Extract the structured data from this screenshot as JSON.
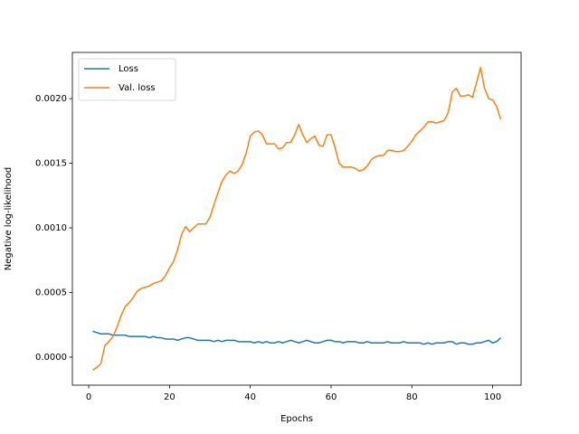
{
  "chart_data": {
    "type": "line",
    "xlabel": "Epochs",
    "ylabel": "Negative log-likelihood",
    "x": [
      1,
      2,
      3,
      4,
      5,
      6,
      7,
      8,
      9,
      10,
      11,
      12,
      13,
      14,
      15,
      16,
      17,
      18,
      19,
      20,
      21,
      22,
      23,
      24,
      25,
      26,
      27,
      28,
      29,
      30,
      31,
      32,
      33,
      34,
      35,
      36,
      37,
      38,
      39,
      40,
      41,
      42,
      43,
      44,
      45,
      46,
      47,
      48,
      49,
      50,
      51,
      52,
      53,
      54,
      55,
      56,
      57,
      58,
      59,
      60,
      61,
      62,
      63,
      64,
      65,
      66,
      67,
      68,
      69,
      70,
      71,
      72,
      73,
      74,
      75,
      76,
      77,
      78,
      79,
      80,
      81,
      82,
      83,
      84,
      85,
      86,
      87,
      88,
      89,
      90,
      91,
      92,
      93,
      94,
      95,
      96,
      97,
      98,
      99,
      100,
      101,
      102
    ],
    "series": [
      {
        "name": "Loss",
        "color": "#1f77b4",
        "values": [
          0.0002,
          0.00019,
          0.00018,
          0.00018,
          0.00018,
          0.00017,
          0.00017,
          0.00017,
          0.00017,
          0.00016,
          0.00016,
          0.00016,
          0.00016,
          0.00016,
          0.00015,
          0.00016,
          0.00015,
          0.00015,
          0.00014,
          0.00014,
          0.00014,
          0.00013,
          0.00014,
          0.00015,
          0.00015,
          0.00014,
          0.00013,
          0.00013,
          0.00013,
          0.00013,
          0.00012,
          0.00013,
          0.00012,
          0.00013,
          0.00013,
          0.00013,
          0.00012,
          0.00012,
          0.00012,
          0.00012,
          0.00011,
          0.00012,
          0.00011,
          0.00012,
          0.00011,
          0.00011,
          0.00012,
          0.00011,
          0.00012,
          0.00013,
          0.00012,
          0.00011,
          0.00012,
          0.00013,
          0.00012,
          0.00011,
          0.00011,
          0.00012,
          0.00013,
          0.00013,
          0.00012,
          0.00012,
          0.00011,
          0.00012,
          0.00012,
          0.00012,
          0.00011,
          0.00011,
          0.00012,
          0.00011,
          0.00011,
          0.00011,
          0.00011,
          0.00012,
          0.00011,
          0.00011,
          0.00011,
          0.00012,
          0.00011,
          0.00011,
          0.00011,
          0.00011,
          0.0001,
          0.00011,
          0.0001,
          0.00011,
          0.00011,
          0.00011,
          0.00012,
          0.00012,
          0.0001,
          0.00011,
          0.00011,
          0.0001,
          0.0001,
          0.00011,
          0.00011,
          0.00012,
          0.00013,
          0.00011,
          0.00012,
          0.00015
        ]
      },
      {
        "name": "Val. loss",
        "color": "#ff7f0e",
        "values": [
          -0.0001,
          -8e-05,
          -5e-05,
          9e-05,
          0.00012,
          0.00016,
          0.00023,
          0.00032,
          0.00039,
          0.00042,
          0.00046,
          0.00051,
          0.00053,
          0.00054,
          0.00055,
          0.00057,
          0.00058,
          0.00059,
          0.00063,
          0.00069,
          0.00074,
          0.00083,
          0.00095,
          0.00101,
          0.00097,
          0.001,
          0.00103,
          0.00103,
          0.00103,
          0.00108,
          0.00118,
          0.00127,
          0.00136,
          0.00141,
          0.00144,
          0.00142,
          0.00144,
          0.00149,
          0.00158,
          0.00171,
          0.00174,
          0.00175,
          0.00172,
          0.00165,
          0.00165,
          0.00165,
          0.00161,
          0.00162,
          0.00166,
          0.00166,
          0.00172,
          0.0018,
          0.00172,
          0.00166,
          0.00169,
          0.00171,
          0.00164,
          0.00163,
          0.00172,
          0.00172,
          0.00162,
          0.0015,
          0.00147,
          0.00147,
          0.00147,
          0.00146,
          0.00144,
          0.00145,
          0.00148,
          0.00153,
          0.00155,
          0.00156,
          0.00156,
          0.0016,
          0.0016,
          0.00159,
          0.00159,
          0.0016,
          0.00163,
          0.00167,
          0.00172,
          0.00175,
          0.00178,
          0.00182,
          0.00182,
          0.00181,
          0.00182,
          0.00183,
          0.00189,
          0.00205,
          0.00208,
          0.00202,
          0.00202,
          0.00203,
          0.00201,
          0.00212,
          0.00224,
          0.00208,
          0.002,
          0.00199,
          0.00194,
          0.00184
        ]
      }
    ],
    "xlim": [
      -4.05,
      107.05
    ],
    "xticks": [
      0,
      20,
      40,
      60,
      80,
      100
    ],
    "ylim": [
      -0.000217,
      0.002357
    ],
    "yticks": [
      {
        "value": 0,
        "label": "0.0000"
      },
      {
        "value": 0.0005,
        "label": "0.0005"
      },
      {
        "value": 0.001,
        "label": "0.0010"
      },
      {
        "value": 0.0015,
        "label": "0.0015"
      },
      {
        "value": 0.002,
        "label": "0.0020"
      }
    ],
    "legend": "upper left"
  }
}
